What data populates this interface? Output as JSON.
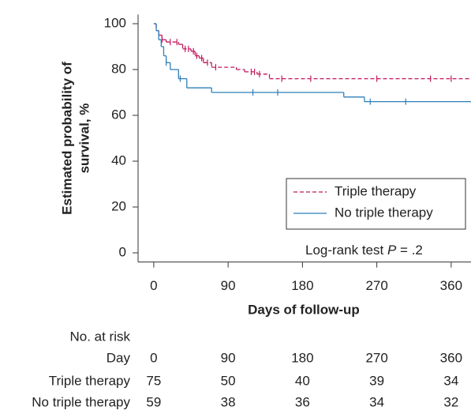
{
  "chart_data": {
    "type": "km",
    "ylabel": [
      "Estimated probability of",
      "survival, %"
    ],
    "xlabel": "Days of follow-up",
    "xlim": [
      -19,
      384
    ],
    "ylim": [
      -4,
      104
    ],
    "xticks": [
      0,
      90,
      180,
      270,
      360
    ],
    "yticks": [
      0,
      20,
      40,
      60,
      80,
      100
    ],
    "legend": "lower right",
    "series": [
      {
        "name": "Triple therapy",
        "color": "#c2185b",
        "dash": true,
        "x": [
          0,
          3,
          6,
          10,
          15,
          30,
          35,
          45,
          50,
          55,
          60,
          70,
          100,
          110,
          125,
          140
        ],
        "y": [
          100,
          97,
          95,
          93,
          92,
          91,
          89,
          88,
          86,
          85,
          83,
          81,
          80,
          79,
          78,
          76
        ],
        "censored": {
          "x": [
            10,
            20,
            28,
            38,
            42,
            48,
            52,
            58,
            65,
            75,
            118,
            122,
            128,
            155,
            190,
            270,
            335,
            360
          ],
          "y": [
            93,
            92,
            92,
            89,
            89,
            88,
            86,
            85,
            83,
            81,
            79,
            79,
            78,
            76,
            76,
            76,
            76,
            76
          ]
        }
      },
      {
        "name": "No triple therapy",
        "color": "#2e7fb8",
        "dash": false,
        "x": [
          0,
          3,
          6,
          9,
          12,
          15,
          20,
          30,
          40,
          70,
          230,
          255
        ],
        "y": [
          100,
          97,
          93,
          90,
          86,
          83,
          80,
          76,
          72,
          70,
          68,
          66
        ],
        "censored": {
          "x": [
            15,
            32,
            120,
            150,
            262,
            305
          ],
          "y": [
            83,
            76,
            70,
            70,
            66,
            66
          ]
        }
      }
    ],
    "annotation": {
      "prefix": "Log-rank test",
      "italic": "P",
      "suffix": "= .2"
    },
    "risk_table": {
      "title": "No. at risk",
      "day_label": "Day",
      "rows": [
        {
          "label": "Triple therapy",
          "values": [
            75,
            50,
            40,
            39,
            34
          ]
        },
        {
          "label": "No triple therapy",
          "values": [
            59,
            38,
            36,
            34,
            32
          ]
        }
      ]
    }
  }
}
